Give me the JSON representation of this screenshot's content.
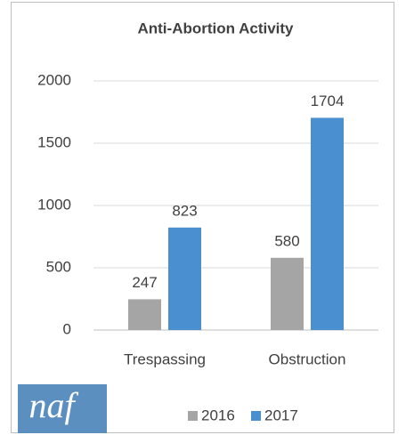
{
  "chart_data": {
    "type": "bar",
    "title": "Anti-Abortion Activity",
    "categories": [
      "Trespassing",
      "Obstruction"
    ],
    "series": [
      {
        "name": "2016",
        "color": "#a5a5a5",
        "values": [
          247,
          580
        ]
      },
      {
        "name": "2017",
        "color": "#4a8fcf",
        "values": [
          823,
          1704
        ]
      }
    ],
    "ylim": [
      0,
      2000
    ],
    "yticks": [
      0,
      500,
      1000,
      1500,
      2000
    ],
    "grid": true,
    "legend": "bottom",
    "logo": "naf"
  }
}
